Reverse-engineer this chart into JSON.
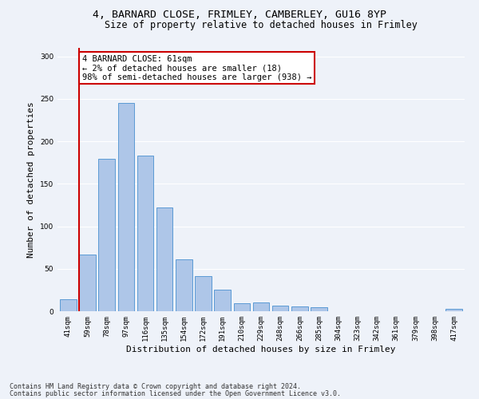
{
  "title_line1": "4, BARNARD CLOSE, FRIMLEY, CAMBERLEY, GU16 8YP",
  "title_line2": "Size of property relative to detached houses in Frimley",
  "xlabel": "Distribution of detached houses by size in Frimley",
  "ylabel": "Number of detached properties",
  "categories": [
    "41sqm",
    "59sqm",
    "78sqm",
    "97sqm",
    "116sqm",
    "135sqm",
    "154sqm",
    "172sqm",
    "191sqm",
    "210sqm",
    "229sqm",
    "248sqm",
    "266sqm",
    "285sqm",
    "304sqm",
    "323sqm",
    "342sqm",
    "361sqm",
    "379sqm",
    "398sqm",
    "417sqm"
  ],
  "values": [
    14,
    67,
    179,
    245,
    183,
    122,
    61,
    41,
    25,
    9,
    10,
    7,
    6,
    5,
    0,
    0,
    0,
    0,
    0,
    0,
    3
  ],
  "bar_color": "#aec6e8",
  "bar_edge_color": "#5b9bd5",
  "annotation_line1": "4 BARNARD CLOSE: 61sqm",
  "annotation_line2": "← 2% of detached houses are smaller (18)",
  "annotation_line3": "98% of semi-detached houses are larger (938) →",
  "annotation_box_color": "#ffffff",
  "annotation_box_edge": "#cc0000",
  "vline_color": "#cc0000",
  "vline_index": 1,
  "ylim": [
    0,
    310
  ],
  "yticks": [
    0,
    50,
    100,
    150,
    200,
    250,
    300
  ],
  "footer_line1": "Contains HM Land Registry data © Crown copyright and database right 2024.",
  "footer_line2": "Contains public sector information licensed under the Open Government Licence v3.0.",
  "bg_color": "#eef2f9",
  "plot_bg_color": "#eef2f9",
  "title_fontsize": 9.5,
  "subtitle_fontsize": 8.5,
  "ylabel_fontsize": 8,
  "xlabel_fontsize": 8,
  "tick_fontsize": 6.5,
  "annotation_fontsize": 7.5,
  "footer_fontsize": 6
}
